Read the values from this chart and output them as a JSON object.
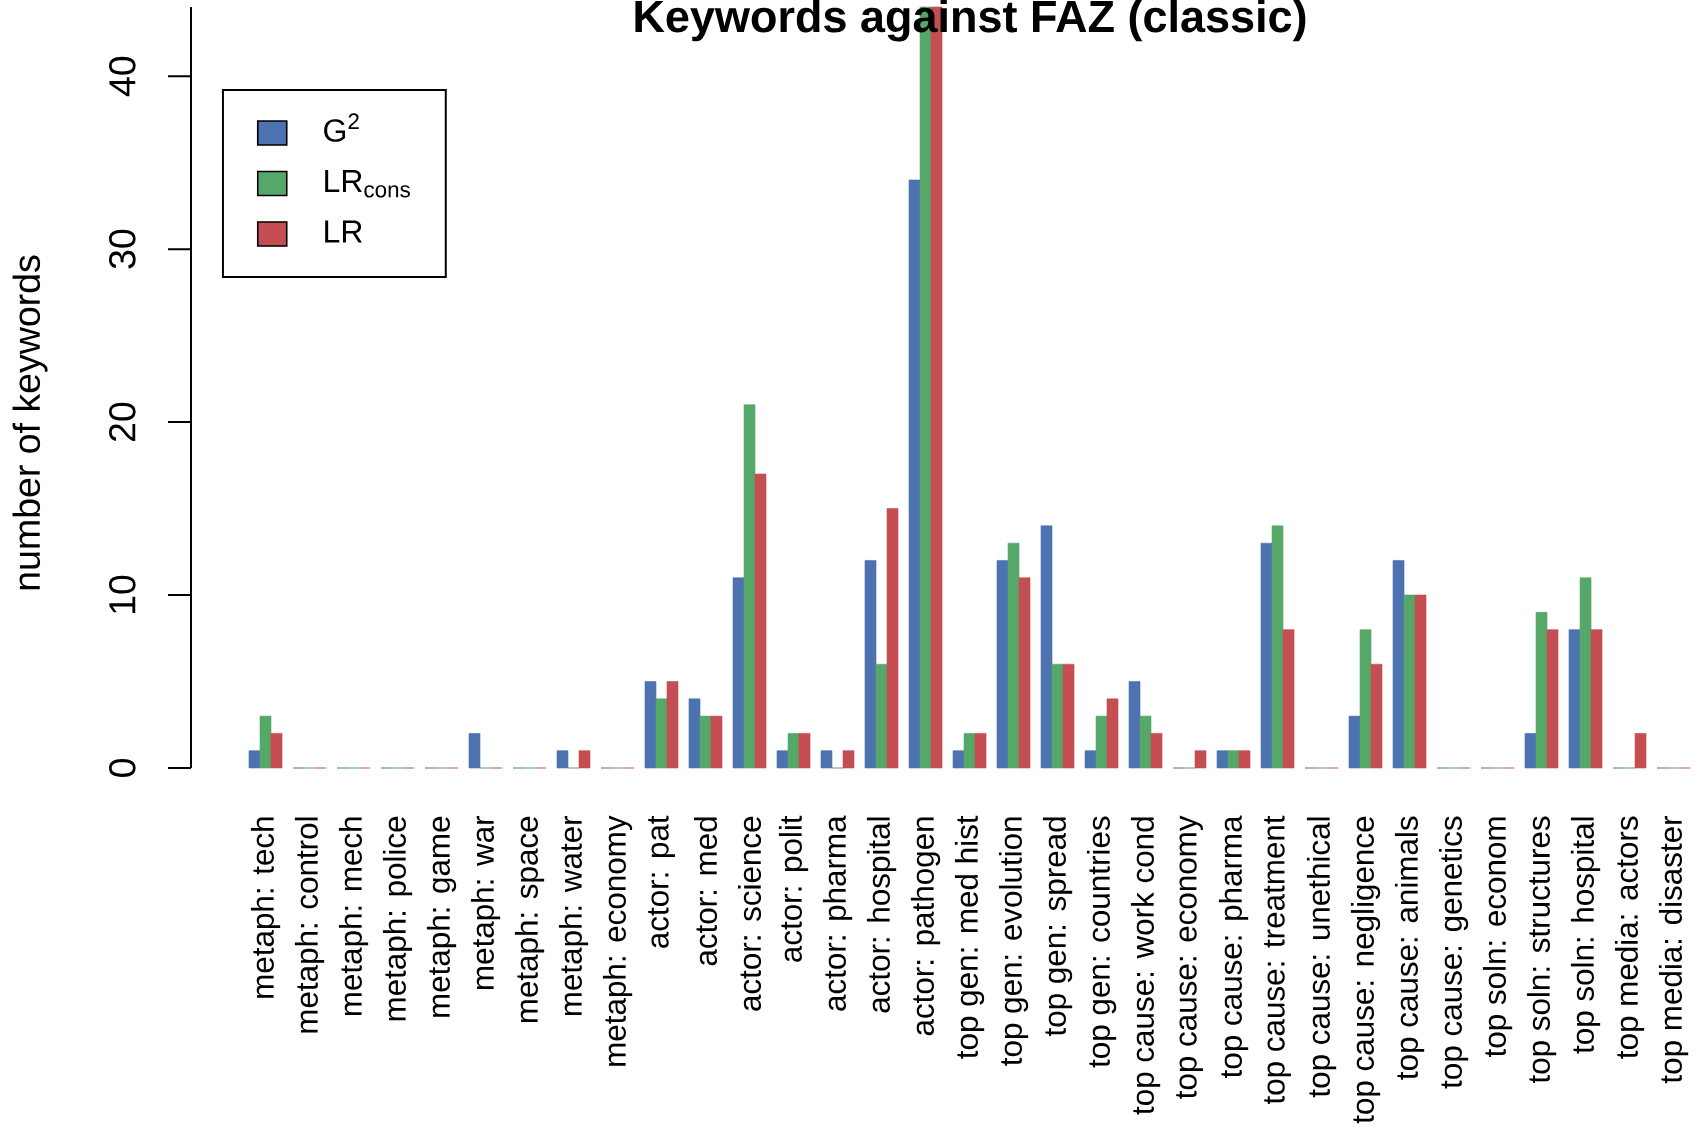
{
  "chart_data": {
    "type": "bar",
    "title": "Keywords against FAZ (classic)",
    "ylabel": "number of keywords",
    "categories": [
      "metaph: tech",
      "metaph: control",
      "metaph: mech",
      "metaph: police",
      "metaph: game",
      "metaph: war",
      "metaph: space",
      "metaph: water",
      "metaph: economy",
      "actor: pat",
      "actor: med",
      "actor: science",
      "actor: polit",
      "actor: pharma",
      "actor: hospital",
      "actor: pathogen",
      "top gen: med hist",
      "top gen: evolution",
      "top gen: spread",
      "top gen: countries",
      "top cause: work cond",
      "top cause: economy",
      "top cause: pharma",
      "top cause: treatment",
      "top cause: unethical",
      "top cause: negligence",
      "top cause: animals",
      "top cause: genetics",
      "top soln: econom",
      "top soln: structures",
      "top soln: hospital",
      "top media: actors",
      "top media: disaster"
    ],
    "series": [
      {
        "name": "G$^{2}$",
        "color": "#4c72b0",
        "values": [
          1,
          0,
          0,
          0,
          0,
          2,
          0,
          1,
          0,
          5,
          4,
          11,
          1,
          1,
          12,
          34,
          1,
          12,
          14,
          1,
          5,
          0,
          1,
          13,
          0,
          3,
          12,
          0,
          0,
          2,
          8,
          0,
          0
        ]
      },
      {
        "name": "LR$_{cons}$",
        "color": "#55a868",
        "values": [
          3,
          0,
          0,
          0,
          0,
          0,
          0,
          0,
          0,
          4,
          3,
          21,
          2,
          0,
          6,
          44,
          2,
          13,
          6,
          3,
          3,
          0,
          1,
          14,
          0,
          8,
          10,
          0,
          0,
          9,
          11,
          0,
          0
        ]
      },
      {
        "name": "LR",
        "color": "#c44e52",
        "values": [
          2,
          0,
          0,
          0,
          0,
          0,
          0,
          1,
          0,
          5,
          3,
          17,
          2,
          1,
          15,
          44,
          2,
          11,
          6,
          4,
          2,
          1,
          1,
          8,
          0,
          6,
          10,
          0,
          0,
          8,
          8,
          2,
          0
        ]
      }
    ],
    "ylim": [
      0,
      44
    ],
    "yticks": [
      0,
      10,
      20,
      30,
      40
    ],
    "legend": "top left"
  }
}
